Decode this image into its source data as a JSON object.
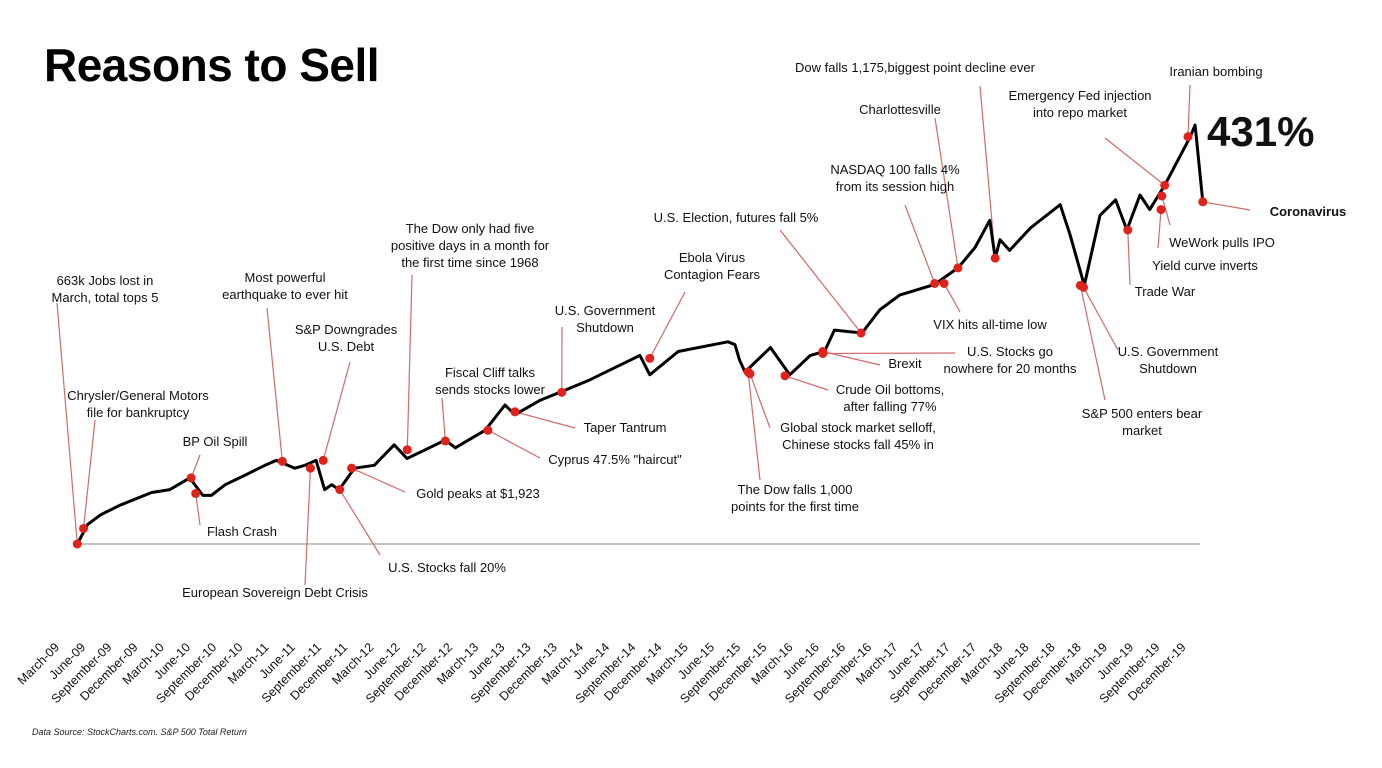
{
  "chart_data": {
    "type": "line",
    "title": "Reasons to Sell",
    "source": "Data Source: StockCharts.com. S&P 500 Total Return",
    "xlabel": "",
    "ylabel": "",
    "ylim": [
      0,
      431
    ],
    "grid": false,
    "total_return_label": "431%",
    "tick_labels": [
      "March-09",
      "June-09",
      "September-09",
      "December-09",
      "March-10",
      "June-10",
      "September-10",
      "December-10",
      "March-11",
      "June-11",
      "September-11",
      "December-11",
      "March-12",
      "June-12",
      "September-12",
      "December-12",
      "March-13",
      "June-13",
      "September-13",
      "December-13",
      "March-14",
      "June-14",
      "September-14",
      "December-14",
      "March-15",
      "June-15",
      "September-15",
      "December-15",
      "March-16",
      "June-16",
      "September-16",
      "December-16",
      "March-17",
      "June-17",
      "September-17",
      "December-17",
      "March-18",
      "June-18",
      "September-18",
      "December-18",
      "March-19",
      "June-19",
      "September-19",
      "December-19"
    ],
    "series": [
      {
        "color": "#000000",
        "points": [
          [
            "2009-03-09",
            0
          ],
          [
            "2009-04-15",
            20
          ],
          [
            "2009-06-01",
            30
          ],
          [
            "2009-08-10",
            40
          ],
          [
            "2009-12-01",
            53
          ],
          [
            "2010-02-05",
            56
          ],
          [
            "2010-04-15",
            68
          ],
          [
            "2010-06-01",
            50
          ],
          [
            "2010-07-01",
            50
          ],
          [
            "2010-08-20",
            61
          ],
          [
            "2010-11-01",
            71
          ],
          [
            "2011-01-10",
            81
          ],
          [
            "2011-02-20",
            86
          ],
          [
            "2011-04-25",
            78
          ],
          [
            "2011-06-01",
            81
          ],
          [
            "2011-07-10",
            86
          ],
          [
            "2011-08-10",
            56
          ],
          [
            "2011-09-05",
            61
          ],
          [
            "2011-10-01",
            56
          ],
          [
            "2011-11-25",
            78
          ],
          [
            "2012-02-05",
            81
          ],
          [
            "2012-04-15",
            102
          ],
          [
            "2012-05-30",
            88
          ],
          [
            "2012-08-05",
            97
          ],
          [
            "2012-10-15",
            107
          ],
          [
            "2012-11-20",
            99
          ],
          [
            "2013-03-05",
            117
          ],
          [
            "2013-05-15",
            143
          ],
          [
            "2013-06-20",
            133
          ],
          [
            "2013-09-20",
            148
          ],
          [
            "2013-12-15",
            158
          ],
          [
            "2014-03-15",
            169
          ],
          [
            "2014-04-20",
            174
          ],
          [
            "2014-08-05",
            189
          ],
          [
            "2014-09-10",
            194
          ],
          [
            "2014-10-15",
            174
          ],
          [
            "2015-01-25",
            198
          ],
          [
            "2015-07-20",
            208
          ],
          [
            "2015-08-15",
            205
          ],
          [
            "2015-09-01",
            189
          ],
          [
            "2015-09-20",
            177
          ],
          [
            "2015-12-20",
            202
          ],
          [
            "2016-02-28",
            174
          ],
          [
            "2016-05-10",
            194
          ],
          [
            "2016-06-30",
            198
          ],
          [
            "2016-08-05",
            220
          ],
          [
            "2016-11-12",
            217
          ],
          [
            "2017-01-15",
            241
          ],
          [
            "2017-03-25",
            256
          ],
          [
            "2017-07-28",
            267
          ],
          [
            "2017-10-20",
            284
          ],
          [
            "2017-12-20",
            305
          ],
          [
            "2018-02-12",
            333
          ],
          [
            "2018-03-01",
            294
          ],
          [
            "2018-03-18",
            313
          ],
          [
            "2018-04-22",
            302
          ],
          [
            "2018-07-05",
            325
          ],
          [
            "2018-10-20",
            349
          ],
          [
            "2018-11-25",
            318
          ],
          [
            "2019-01-15",
            266
          ],
          [
            "2019-03-10",
            338
          ],
          [
            "2019-05-05",
            354
          ],
          [
            "2019-06-15",
            323
          ],
          [
            "2019-08-01",
            359
          ],
          [
            "2019-09-05",
            344
          ],
          [
            "2019-10-28",
            369
          ],
          [
            "2020-01-28",
            419
          ],
          [
            "2020-02-15",
            431
          ],
          [
            "2020-03-12",
            352
          ]
        ]
      }
    ],
    "marker_color": "#e0221c",
    "leader_color": "#d46a6a",
    "annotations": [
      {
        "lines": [
          "663k Jobs lost in",
          "March, total tops 5"
        ],
        "date": "2009-03-09",
        "value": 0
      },
      {
        "lines": [
          "Chrysler/General Motors",
          "file for bankruptcy"
        ],
        "date": "2009-04-01",
        "value": 16
      },
      {
        "lines": [
          "BP Oil Spill"
        ],
        "date": "2010-04-20",
        "value": 68
      },
      {
        "lines": [
          "Flash Crash"
        ],
        "date": "2010-05-06",
        "value": 52
      },
      {
        "lines": [
          "Most powerful",
          "earthquake to ever hit"
        ],
        "date": "2011-03-11",
        "value": 85
      },
      {
        "lines": [
          "European Sovereign Debt Crisis"
        ],
        "date": "2011-06-20",
        "value": 78
      },
      {
        "lines": [
          "S&P Downgrades",
          "U.S. Debt"
        ],
        "date": "2011-08-05",
        "value": 86
      },
      {
        "lines": [
          "U.S. Stocks fall 20%"
        ],
        "date": "2011-10-03",
        "value": 56
      },
      {
        "lines": [
          "Gold peaks at $1,923"
        ],
        "date": "2011-11-15",
        "value": 78
      },
      {
        "lines": [
          "The Dow only had five",
          "positive days in a month for",
          "the first time since 1968"
        ],
        "date": "2012-06-01",
        "value": 97
      },
      {
        "lines": [
          "Fiscal Cliff talks",
          "sends stocks lower"
        ],
        "date": "2012-10-15",
        "value": 106
      },
      {
        "lines": [
          "Cyprus 47.5% \"haircut\""
        ],
        "date": "2013-03-15",
        "value": 117
      },
      {
        "lines": [
          "Taper Tantrum"
        ],
        "date": "2013-06-20",
        "value": 136
      },
      {
        "lines": [
          "U.S. Government",
          "Shutdown"
        ],
        "date": "2013-12-05",
        "value": 156
      },
      {
        "lines": [
          "Ebola Virus",
          "Contagion Fears"
        ],
        "date": "2014-10-15",
        "value": 191
      },
      {
        "lines": [
          "The Dow falls 1,000",
          "points for the first time"
        ],
        "date": "2015-10-01",
        "value": 177
      },
      {
        "lines": [
          "Global stock market selloff,",
          "Chinese stocks fall 45% in"
        ],
        "date": "2015-10-08",
        "value": 175
      },
      {
        "lines": [
          "Crude Oil bottoms,",
          "after falling 77%"
        ],
        "date": "2016-02-11",
        "value": 173
      },
      {
        "lines": [
          "U.S. Election, futures fall 5%"
        ],
        "date": "2016-11-09",
        "value": 217
      },
      {
        "lines": [
          "Brexit"
        ],
        "date": "2016-06-24",
        "value": 198
      },
      {
        "lines": [
          "U.S. Stocks go",
          "nowhere for 20 months"
        ],
        "date": "2016-06-24",
        "value": 196
      },
      {
        "lines": [
          "NASDAQ 100 falls 4%",
          "from its  session high"
        ],
        "date": "2017-07-28",
        "value": 268
      },
      {
        "lines": [
          "VIX hits all-time low"
        ],
        "date": "2017-09-01",
        "value": 268
      },
      {
        "lines": [
          "Charlottesville"
        ],
        "date": "2017-10-20",
        "value": 284
      },
      {
        "lines": [
          "Dow falls 1,175,biggest point decline ever"
        ],
        "date": "2018-03-01",
        "value": 294
      },
      {
        "lines": [
          "Emergency Fed injection",
          "into repo market"
        ],
        "date": "2019-10-28",
        "value": 369
      },
      {
        "lines": [
          "Iranian bombing"
        ],
        "date": "2020-01-20",
        "value": 419
      },
      {
        "lines": [
          "Coronavirus"
        ],
        "date": "2020-03-12",
        "value": 352,
        "bold": true
      },
      {
        "lines": [
          "WeWork pulls IPO"
        ],
        "date": "2019-10-18",
        "value": 358
      },
      {
        "lines": [
          "Yield curve inverts"
        ],
        "date": "2019-10-15",
        "value": 344
      },
      {
        "lines": [
          "Trade War"
        ],
        "date": "2019-06-18",
        "value": 323
      },
      {
        "lines": [
          "U.S. Government",
          "Shutdown"
        ],
        "date": "2019-01-12",
        "value": 264
      },
      {
        "lines": [
          "S&P 500 enters bear",
          "market"
        ],
        "date": "2019-01-01",
        "value": 266
      }
    ]
  }
}
